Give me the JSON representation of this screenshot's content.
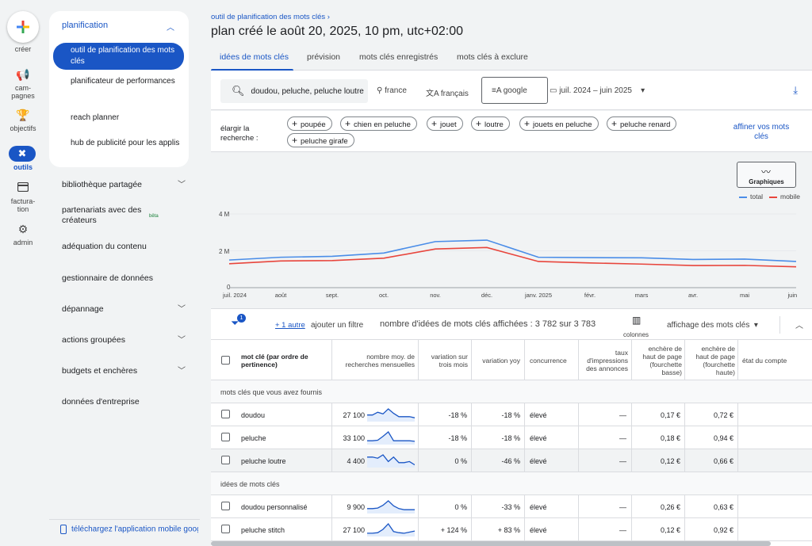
{
  "rail": {
    "items": [
      {
        "label": "créer"
      },
      {
        "label": "cam-\npagnes"
      },
      {
        "label": "objectifs"
      },
      {
        "label": "outils"
      },
      {
        "label": "factura-\ntion"
      },
      {
        "label": "admin"
      }
    ]
  },
  "sidenav": {
    "section": "planification",
    "sub_items": [
      "outil de planification des mots clés",
      "planificateur de performances",
      "reach planner",
      "hub de publicité pour les applis"
    ],
    "items": [
      {
        "label": "bibliothèque partagée"
      },
      {
        "label": "partenariats avec des créateurs",
        "badge": "bêta"
      },
      {
        "label": "adéquation du contenu"
      },
      {
        "label": "gestionnaire de données"
      },
      {
        "label": "dépannage"
      },
      {
        "label": "actions groupées"
      },
      {
        "label": "budgets et enchères"
      },
      {
        "label": "données d'entreprise"
      }
    ],
    "mobile_link": "téléchargez l'application mobile goog"
  },
  "header": {
    "breadcrumb": "outil de planification des mots clés",
    "title": "plan créé le août 20, 2025, 10 pm, utc+02:00"
  },
  "tabs": [
    "idées de mots clés",
    "prévision",
    "mots clés enregistrés",
    "mots clés à exclure"
  ],
  "filters": {
    "keywords": "doudou, peluche, peluche loutre",
    "location": "france",
    "language": "français",
    "network": "google",
    "date_range": "juil. 2024 – juin 2025"
  },
  "broaden": {
    "label": "élargir la recherche :",
    "chips": [
      "poupée",
      "chien en peluche",
      "jouet",
      "loutre",
      "jouets en peluche",
      "peluche renard",
      "peluche girafe"
    ],
    "refine": "affiner vos mots clés"
  },
  "chart_data": {
    "type": "line",
    "x": [
      "juil. 2024",
      "août",
      "sept.",
      "oct.",
      "nov.",
      "déc.",
      "janv. 2025",
      "févr.",
      "mars",
      "avr.",
      "mai",
      "juin"
    ],
    "series": [
      {
        "name": "total",
        "color": "#4a8de8",
        "values": [
          1500000,
          1650000,
          1700000,
          1880000,
          2500000,
          2580000,
          1650000,
          1630000,
          1620000,
          1530000,
          1550000,
          1420000
        ]
      },
      {
        "name": "mobile",
        "color": "#e8453c",
        "values": [
          1300000,
          1450000,
          1470000,
          1600000,
          2100000,
          2180000,
          1420000,
          1340000,
          1280000,
          1200000,
          1210000,
          1130000
        ]
      }
    ],
    "yticks": [
      "0",
      "2 M",
      "4 M"
    ],
    "ylim": [
      0,
      4000000
    ],
    "legend_position": "top-right",
    "grid": true,
    "button_label": "Graphiques"
  },
  "filterbar": {
    "badge": "1",
    "more": "+ 1 autre",
    "add_filter": "ajouter un filtre",
    "count": "nombre d'idées de mots clés affichées : 3 782 sur 3 783",
    "columns": "colonnes",
    "view": "affichage des mots clés"
  },
  "table": {
    "headers": [
      "mot clé (par ordre de pertinence)",
      "nombre moy. de recherches mensuelles",
      "variation sur trois mois",
      "variation yoy",
      "concurrence",
      "taux d'impressions des annonces",
      "enchère de haut de page (fourchette basse)",
      "enchère de haut de page (fourchette haute)",
      "état du compte"
    ],
    "group1": "mots clés que vous avez fournis",
    "group2": "idées de mots clés",
    "rows1": [
      {
        "kw": "doudou",
        "vol": "27 100",
        "m3": "-18 %",
        "yoy": "-18 %",
        "comp": "élevé",
        "imp": "—",
        "low": "0,17 €",
        "high": "0,72 €",
        "trend": [
          0.45,
          0.45,
          0.7,
          0.55,
          1.0,
          0.6,
          0.3,
          0.3,
          0.3,
          0.2
        ]
      },
      {
        "kw": "peluche",
        "vol": "33 100",
        "m3": "-18 %",
        "yoy": "-18 %",
        "comp": "élevé",
        "imp": "—",
        "low": "0,18 €",
        "high": "0,94 €",
        "trend": [
          0.2,
          0.2,
          0.25,
          0.6,
          1.0,
          0.2,
          0.2,
          0.2,
          0.2,
          0.15
        ]
      },
      {
        "kw": "peluche loutre",
        "vol": "4 400",
        "m3": "0 %",
        "yoy": "-46 %",
        "comp": "élevé",
        "imp": "—",
        "low": "0,12 €",
        "high": "0,66 €",
        "trend": [
          0.8,
          0.8,
          0.7,
          1.0,
          0.4,
          0.8,
          0.3,
          0.3,
          0.4,
          0.1
        ]
      }
    ],
    "rows2": [
      {
        "kw": "doudou personnalisé",
        "vol": "9 900",
        "m3": "0 %",
        "yoy": "-33 %",
        "comp": "élevé",
        "imp": "—",
        "low": "0,26 €",
        "high": "0,63 €",
        "trend": [
          0.3,
          0.3,
          0.35,
          0.6,
          1.0,
          0.55,
          0.3,
          0.2,
          0.2,
          0.2
        ]
      },
      {
        "kw": "peluche stitch",
        "vol": "27 100",
        "m3": "+ 124 %",
        "yoy": "+ 83 %",
        "comp": "élevé",
        "imp": "—",
        "low": "0,12 €",
        "high": "0,92 €",
        "trend": [
          0.15,
          0.15,
          0.2,
          0.5,
          1.0,
          0.3,
          0.2,
          0.15,
          0.25,
          0.35
        ]
      }
    ]
  }
}
